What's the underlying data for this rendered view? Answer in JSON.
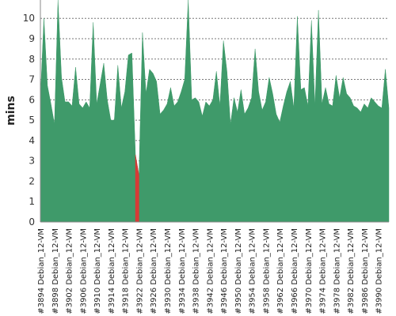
{
  "chart_data": {
    "type": "area",
    "ylabel": "mins",
    "ylim": [
      0,
      10.9
    ],
    "yticks": [
      0,
      1,
      2,
      3,
      4,
      5,
      6,
      7,
      8,
      9,
      10
    ],
    "grid": true,
    "x_tick_labels": [
      "#3894 Debian_12-VM",
      "#3898 Debian_12-VM",
      "#3902 Debian_12-VM",
      "#3906 Debian_12-VM",
      "#3910 Debian_12-VM",
      "#3914 Debian_12-VM",
      "#3918 Debian_12-VM",
      "#3922 Debian_12-VM",
      "#3926 Debian_12-VM",
      "#3930 Debian_12-VM",
      "#3934 Debian_12-VM",
      "#3938 Debian_12-VM",
      "#3942 Debian_12-VM",
      "#3946 Debian_12-VM",
      "#3950 Debian_12-VM",
      "#3954 Debian_12-VM",
      "#3958 Debian_12-VM",
      "#3962 Debian_12-VM",
      "#3966 Debian_12-VM",
      "#3970 Debian_12-VM",
      "#3974 Debian_12-VM",
      "#3978 Debian_12-VM",
      "#3982 Debian_12-VM",
      "#3986 Debian_12-VM",
      "#3990 Debian_12-VM"
    ],
    "x_start": 3894,
    "x_step": 1,
    "series": [
      {
        "color": "#3f9a6a",
        "values": [
          6.1,
          10.0,
          6.7,
          5.8,
          4.8,
          10.9,
          7.1,
          5.9,
          5.9,
          5.7,
          7.6,
          5.8,
          5.6,
          5.9,
          5.6,
          9.8,
          5.8,
          6.8,
          7.8,
          6.0,
          5.0,
          5.0,
          7.7,
          5.6,
          6.4,
          8.2,
          8.3,
          3.3,
          2.3,
          9.3,
          6.3,
          7.5,
          7.3,
          6.9,
          5.3,
          5.5,
          5.8,
          6.6,
          5.7,
          5.9,
          6.4,
          7.0,
          10.9,
          6.0,
          6.1,
          5.9,
          5.2,
          5.9,
          5.7,
          6.0,
          7.4,
          5.7,
          8.9,
          7.4,
          4.8,
          6.1,
          5.4,
          6.5,
          5.3,
          5.6,
          6.1,
          8.5,
          6.4,
          5.5,
          5.9,
          7.1,
          6.3,
          5.3,
          4.9,
          5.7,
          6.4,
          6.9,
          5.6,
          10.1,
          6.5,
          6.6,
          5.7,
          9.9,
          5.7,
          10.4,
          5.8,
          6.6,
          5.8,
          5.7,
          7.2,
          6.1,
          7.1,
          6.3,
          6.1,
          5.7,
          5.6,
          5.4,
          5.8,
          5.6,
          6.1,
          5.9,
          5.7,
          5.6,
          7.5,
          5.6
        ]
      }
    ],
    "highlight": {
      "from_index": 27,
      "to_index": 28,
      "color": "#d63a36"
    }
  }
}
